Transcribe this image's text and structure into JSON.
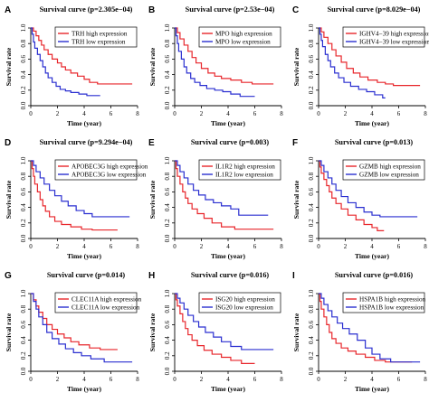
{
  "figure": {
    "panels": [
      {
        "letter": "A",
        "title": "Survival curve (p=2.305e−04)",
        "xlabel": "Time (year)",
        "ylabel": "Survival rate",
        "legend": {
          "high": "TRH high expression",
          "low": "TRH low expression"
        }
      },
      {
        "letter": "B",
        "title": "Survival curve (p=2.53e−04)",
        "xlabel": "Time (year)",
        "ylabel": "Survival rate",
        "legend": {
          "high": "MPO high expression",
          "low": "MPO low expression"
        }
      },
      {
        "letter": "C",
        "title": "Survival curve (p=8.029e−04)",
        "xlabel": "Time (year)",
        "ylabel": "Survival rate",
        "legend": {
          "high": "IGHV4−39 high expression",
          "low": "IGHV4−39 low expression"
        }
      },
      {
        "letter": "D",
        "title": "Survival curve (p=9.294e−04)",
        "xlabel": "Time (year)",
        "ylabel": "Survival rate",
        "legend": {
          "high": "APOBEC3G high expression",
          "low": "APOBEC3G low expression"
        }
      },
      {
        "letter": "E",
        "title": "Survival curve (p=0.003)",
        "xlabel": "Time (year)",
        "ylabel": "Survival rate",
        "legend": {
          "high": "IL1R2 high expression",
          "low": "IL1R2 low expression"
        }
      },
      {
        "letter": "F",
        "title": "Survival curve (p=0.013)",
        "xlabel": "Time (year)",
        "ylabel": "Survival rate",
        "legend": {
          "high": "GZMB high expression",
          "low": "GZMB low expression"
        }
      },
      {
        "letter": "G",
        "title": "Survival curve (p=0.014)",
        "xlabel": "Time (year)",
        "ylabel": "Survival rate",
        "legend": {
          "high": "CLEC11A high expression",
          "low": "CLEC11A low expression"
        }
      },
      {
        "letter": "H",
        "title": "Survival curve (p=0.016)",
        "xlabel": "Time (year)",
        "ylabel": "Survival rate",
        "legend": {
          "high": "ISG20 high expression",
          "low": "ISG20 low expression"
        }
      },
      {
        "letter": "I",
        "title": "Survival curve (p=0.016)",
        "xlabel": "Time (year)",
        "ylabel": "Survival rate",
        "legend": {
          "high": "HSPA1B high expression",
          "low": "HSPA1B low expression"
        }
      }
    ]
  },
  "colors": {
    "high": "#e8262b",
    "low": "#2a2fd0",
    "axis": "#000000"
  },
  "chart_data": [
    {
      "type": "line",
      "step": true,
      "title": "Survival curve (p=2.305e−04)",
      "xlabel": "Time (year)",
      "ylabel": "Survival rate",
      "xlim": [
        0,
        8
      ],
      "ylim": [
        0,
        1
      ],
      "xticks": [
        "0",
        "2",
        "4",
        "6",
        "8"
      ],
      "yticks": [
        "0.0",
        "0.2",
        "0.4",
        "0.6",
        "0.8",
        "1.0"
      ],
      "legend_position": "top-right",
      "series": [
        {
          "name": "TRH high expression",
          "color": "high",
          "x": [
            0,
            0.2,
            0.4,
            0.6,
            0.8,
            1.0,
            1.3,
            1.6,
            2.0,
            2.3,
            2.6,
            3.0,
            3.5,
            4.0,
            4.4,
            5.0,
            7.6
          ],
          "y": [
            1.0,
            0.96,
            0.9,
            0.84,
            0.78,
            0.72,
            0.66,
            0.6,
            0.55,
            0.5,
            0.46,
            0.42,
            0.38,
            0.34,
            0.3,
            0.28,
            0.28
          ]
        },
        {
          "name": "TRH low expression",
          "color": "low",
          "x": [
            0,
            0.1,
            0.2,
            0.3,
            0.5,
            0.7,
            0.9,
            1.1,
            1.3,
            1.6,
            1.9,
            2.2,
            2.6,
            3.0,
            3.6,
            4.2,
            5.2
          ],
          "y": [
            1.0,
            0.92,
            0.82,
            0.74,
            0.66,
            0.58,
            0.5,
            0.42,
            0.36,
            0.3,
            0.25,
            0.21,
            0.19,
            0.17,
            0.15,
            0.13,
            0.13
          ]
        }
      ]
    },
    {
      "type": "line",
      "step": true,
      "title": "Survival curve (p=2.53e−04)",
      "xlabel": "Time (year)",
      "ylabel": "Survival rate",
      "xlim": [
        0,
        8
      ],
      "ylim": [
        0,
        1
      ],
      "xticks": [
        "0",
        "2",
        "4",
        "6",
        "8"
      ],
      "yticks": [
        "0.0",
        "0.2",
        "0.4",
        "0.6",
        "0.8",
        "1.0"
      ],
      "legend_position": "top-right",
      "series": [
        {
          "name": "MPO high expression",
          "color": "high",
          "x": [
            0,
            0.2,
            0.4,
            0.7,
            1.0,
            1.3,
            1.6,
            2.0,
            2.5,
            3.0,
            3.5,
            4.2,
            5.0,
            5.8,
            7.4
          ],
          "y": [
            1.0,
            0.94,
            0.86,
            0.78,
            0.7,
            0.62,
            0.55,
            0.48,
            0.42,
            0.38,
            0.35,
            0.33,
            0.3,
            0.28,
            0.28
          ]
        },
        {
          "name": "MPO low expression",
          "color": "low",
          "x": [
            0,
            0.1,
            0.2,
            0.3,
            0.5,
            0.7,
            0.9,
            1.2,
            1.5,
            1.9,
            2.4,
            3.0,
            3.6,
            4.2,
            4.9,
            6.0
          ],
          "y": [
            1.0,
            0.9,
            0.8,
            0.7,
            0.6,
            0.5,
            0.42,
            0.35,
            0.3,
            0.26,
            0.22,
            0.2,
            0.18,
            0.15,
            0.12,
            0.12
          ]
        }
      ]
    },
    {
      "type": "line",
      "step": true,
      "title": "Survival curve (p=8.029e−04)",
      "xlabel": "Time (year)",
      "ylabel": "Survival rate",
      "xlim": [
        0,
        8
      ],
      "ylim": [
        0,
        1
      ],
      "xticks": [
        "0",
        "2",
        "4",
        "6",
        "8"
      ],
      "yticks": [
        "0.0",
        "0.2",
        "0.4",
        "0.6",
        "0.8",
        "1.0"
      ],
      "legend_position": "top-right",
      "series": [
        {
          "name": "IGHV4−39 high expression",
          "color": "high",
          "x": [
            0,
            0.2,
            0.4,
            0.7,
            1.0,
            1.3,
            1.7,
            2.1,
            2.6,
            3.1,
            3.7,
            4.4,
            5.0,
            5.6,
            7.6
          ],
          "y": [
            1.0,
            0.95,
            0.88,
            0.8,
            0.72,
            0.64,
            0.56,
            0.48,
            0.42,
            0.37,
            0.33,
            0.3,
            0.28,
            0.26,
            0.26
          ]
        },
        {
          "name": "IGHV4−39 low expression",
          "color": "low",
          "x": [
            0,
            0.1,
            0.2,
            0.3,
            0.5,
            0.7,
            0.9,
            1.2,
            1.5,
            1.9,
            2.4,
            3.0,
            3.6,
            4.2,
            4.8,
            5.0
          ],
          "y": [
            1.0,
            0.92,
            0.84,
            0.76,
            0.66,
            0.58,
            0.5,
            0.42,
            0.36,
            0.3,
            0.25,
            0.21,
            0.18,
            0.14,
            0.1,
            0.1
          ]
        }
      ]
    },
    {
      "type": "line",
      "step": true,
      "title": "Survival curve (p=9.294e−04)",
      "xlabel": "Time (year)",
      "ylabel": "Survival rate",
      "xlim": [
        0,
        8
      ],
      "ylim": [
        0,
        1
      ],
      "xticks": [
        "0",
        "2",
        "4",
        "6",
        "8"
      ],
      "yticks": [
        "0.0",
        "0.2",
        "0.4",
        "0.6",
        "0.8",
        "1.0"
      ],
      "legend_position": "top-right",
      "series": [
        {
          "name": "APOBEC3G high expression",
          "color": "high",
          "x": [
            0,
            0.1,
            0.2,
            0.3,
            0.5,
            0.7,
            0.9,
            1.1,
            1.4,
            1.8,
            2.3,
            3.0,
            3.8,
            4.6,
            6.5
          ],
          "y": [
            1.0,
            0.9,
            0.8,
            0.7,
            0.6,
            0.5,
            0.42,
            0.35,
            0.28,
            0.22,
            0.18,
            0.15,
            0.12,
            0.11,
            0.11
          ]
        },
        {
          "name": "APOBEC3G low expression",
          "color": "low",
          "x": [
            0,
            0.2,
            0.4,
            0.7,
            1.0,
            1.4,
            1.8,
            2.3,
            2.8,
            3.4,
            4.0,
            4.6,
            7.4
          ],
          "y": [
            1.0,
            0.94,
            0.86,
            0.78,
            0.7,
            0.62,
            0.55,
            0.48,
            0.42,
            0.36,
            0.32,
            0.28,
            0.28
          ]
        }
      ]
    },
    {
      "type": "line",
      "step": true,
      "title": "Survival curve (p=0.003)",
      "xlabel": "Time (year)",
      "ylabel": "Survival rate",
      "xlim": [
        0,
        8
      ],
      "ylim": [
        0,
        1
      ],
      "xticks": [
        "0",
        "2",
        "4",
        "6",
        "8"
      ],
      "yticks": [
        "0.0",
        "0.2",
        "0.4",
        "0.6",
        "0.8",
        "1.0"
      ],
      "legend_position": "top-right",
      "series": [
        {
          "name": "IL1R2 high expression",
          "color": "high",
          "x": [
            0,
            0.1,
            0.2,
            0.4,
            0.6,
            0.8,
            1.0,
            1.3,
            1.7,
            2.2,
            2.8,
            3.5,
            4.5,
            7.4
          ],
          "y": [
            1.0,
            0.9,
            0.8,
            0.7,
            0.6,
            0.52,
            0.45,
            0.38,
            0.32,
            0.26,
            0.2,
            0.15,
            0.12,
            0.12
          ]
        },
        {
          "name": "IL1R2 low expression",
          "color": "low",
          "x": [
            0,
            0.2,
            0.4,
            0.7,
            1.0,
            1.4,
            1.8,
            2.3,
            2.9,
            3.5,
            4.2,
            4.8,
            7.0
          ],
          "y": [
            1.0,
            0.94,
            0.86,
            0.78,
            0.7,
            0.62,
            0.56,
            0.5,
            0.46,
            0.42,
            0.38,
            0.3,
            0.3
          ]
        }
      ]
    },
    {
      "type": "line",
      "step": true,
      "title": "Survival curve (p=0.013)",
      "xlabel": "Time (year)",
      "ylabel": "Survival rate",
      "xlim": [
        0,
        8
      ],
      "ylim": [
        0,
        1
      ],
      "xticks": [
        "0",
        "2",
        "4",
        "6",
        "8"
      ],
      "yticks": [
        "0.0",
        "0.2",
        "0.4",
        "0.6",
        "0.8",
        "1.0"
      ],
      "legend_position": "top-right",
      "series": [
        {
          "name": "GZMB high expression",
          "color": "high",
          "x": [
            0,
            0.1,
            0.2,
            0.4,
            0.6,
            0.8,
            1.0,
            1.3,
            1.7,
            2.2,
            2.8,
            3.4,
            4.0,
            4.4,
            4.9
          ],
          "y": [
            1.0,
            0.92,
            0.84,
            0.76,
            0.68,
            0.6,
            0.52,
            0.45,
            0.38,
            0.3,
            0.24,
            0.18,
            0.14,
            0.1,
            0.1
          ]
        },
        {
          "name": "GZMB low expression",
          "color": "low",
          "x": [
            0,
            0.2,
            0.4,
            0.7,
            1.0,
            1.3,
            1.7,
            2.2,
            2.8,
            3.4,
            4.0,
            4.6,
            7.4
          ],
          "y": [
            1.0,
            0.94,
            0.86,
            0.78,
            0.7,
            0.62,
            0.54,
            0.46,
            0.4,
            0.34,
            0.3,
            0.28,
            0.28
          ]
        }
      ]
    },
    {
      "type": "line",
      "step": true,
      "title": "Survival curve (p=0.014)",
      "xlabel": "Time (year)",
      "ylabel": "Survival rate",
      "xlim": [
        0,
        8
      ],
      "ylim": [
        0,
        1
      ],
      "xticks": [
        "0",
        "2",
        "4",
        "6",
        "8"
      ],
      "yticks": [
        "0.0",
        "0.2",
        "0.4",
        "0.6",
        "0.8",
        "1.0"
      ],
      "legend_position": "top-right",
      "series": [
        {
          "name": "CLEC11A high expression",
          "color": "high",
          "x": [
            0,
            0.2,
            0.4,
            0.6,
            0.9,
            1.2,
            1.6,
            2.0,
            2.5,
            3.0,
            3.6,
            4.4,
            5.2,
            6.5
          ],
          "y": [
            1.0,
            0.92,
            0.84,
            0.76,
            0.68,
            0.6,
            0.54,
            0.48,
            0.43,
            0.38,
            0.34,
            0.3,
            0.28,
            0.28
          ]
        },
        {
          "name": "CLEC11A low expression",
          "color": "low",
          "x": [
            0,
            0.2,
            0.4,
            0.6,
            0.9,
            1.2,
            1.6,
            2.1,
            2.6,
            3.2,
            3.8,
            4.5,
            5.5,
            7.6
          ],
          "y": [
            1.0,
            0.9,
            0.8,
            0.7,
            0.6,
            0.5,
            0.42,
            0.35,
            0.29,
            0.24,
            0.2,
            0.16,
            0.12,
            0.12
          ]
        }
      ]
    },
    {
      "type": "line",
      "step": true,
      "title": "Survival curve (p=0.016)",
      "xlabel": "Time (year)",
      "ylabel": "Survival rate",
      "xlim": [
        0,
        8
      ],
      "ylim": [
        0,
        1
      ],
      "xticks": [
        "0",
        "2",
        "4",
        "6",
        "8"
      ],
      "yticks": [
        "0.0",
        "0.2",
        "0.4",
        "0.6",
        "0.8",
        "1.0"
      ],
      "legend_position": "top-right",
      "series": [
        {
          "name": "ISG20 high expression",
          "color": "high",
          "x": [
            0,
            0.1,
            0.2,
            0.4,
            0.6,
            0.8,
            1.0,
            1.3,
            1.7,
            2.2,
            2.8,
            3.5,
            4.2,
            5.0,
            6.0
          ],
          "y": [
            1.0,
            0.92,
            0.84,
            0.74,
            0.64,
            0.55,
            0.47,
            0.4,
            0.33,
            0.27,
            0.22,
            0.18,
            0.14,
            0.1,
            0.1
          ]
        },
        {
          "name": "ISG20 low expression",
          "color": "low",
          "x": [
            0,
            0.2,
            0.4,
            0.7,
            1.0,
            1.4,
            1.8,
            2.3,
            2.9,
            3.5,
            4.2,
            5.0,
            7.4
          ],
          "y": [
            1.0,
            0.94,
            0.88,
            0.8,
            0.72,
            0.64,
            0.57,
            0.5,
            0.44,
            0.38,
            0.32,
            0.28,
            0.28
          ]
        }
      ]
    },
    {
      "type": "line",
      "step": true,
      "title": "Survival curve (p=0.016)",
      "xlabel": "Time (year)",
      "ylabel": "Survival rate",
      "xlim": [
        0,
        8
      ],
      "ylim": [
        0,
        1
      ],
      "xticks": [
        "0",
        "2",
        "4",
        "6",
        "8"
      ],
      "yticks": [
        "0.0",
        "0.2",
        "0.4",
        "0.6",
        "0.8",
        "1.0"
      ],
      "legend_position": "top-right",
      "series": [
        {
          "name": "HSPA1B high expression",
          "color": "high",
          "x": [
            0,
            0.1,
            0.2,
            0.4,
            0.6,
            0.8,
            1.0,
            1.3,
            1.7,
            2.2,
            2.8,
            3.5,
            4.2,
            5.0,
            7.0
          ],
          "y": [
            1.0,
            0.9,
            0.8,
            0.7,
            0.6,
            0.5,
            0.42,
            0.36,
            0.3,
            0.26,
            0.22,
            0.18,
            0.14,
            0.12,
            0.12
          ]
        },
        {
          "name": "HSPA1B low expression",
          "color": "low",
          "x": [
            0,
            0.2,
            0.4,
            0.7,
            1.0,
            1.4,
            1.8,
            2.3,
            2.9,
            3.5,
            4.0,
            4.6,
            5.4,
            7.6
          ],
          "y": [
            1.0,
            0.94,
            0.86,
            0.78,
            0.7,
            0.62,
            0.55,
            0.48,
            0.4,
            0.3,
            0.22,
            0.16,
            0.12,
            0.12
          ]
        }
      ]
    }
  ]
}
